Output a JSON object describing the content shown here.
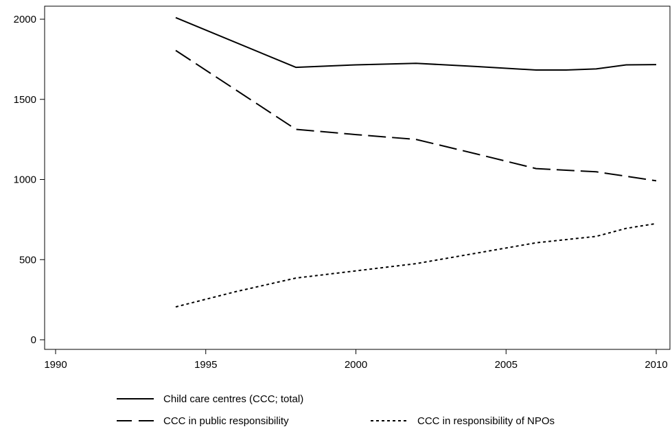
{
  "chart_data": {
    "type": "line",
    "title": "",
    "xlabel": "",
    "ylabel": "",
    "xlim": [
      1990,
      2010
    ],
    "ylim": [
      0,
      2000
    ],
    "x_ticks": [
      1990,
      1995,
      2000,
      2005,
      2010
    ],
    "y_ticks": [
      0,
      500,
      1000,
      1500,
      2000
    ],
    "grid": false,
    "legend_position": "bottom",
    "series": [
      {
        "name": "Child care centres (CCC; total)",
        "style": "solid",
        "color": "#000000",
        "x": [
          1994,
          1998,
          2000,
          2002,
          2004,
          2006,
          2007,
          2008,
          2009,
          2010
        ],
        "y": [
          2010,
          1700,
          1715,
          1725,
          1705,
          1683,
          1683,
          1690,
          1715,
          1717
        ]
      },
      {
        "name": "CCC in public responsibility",
        "style": "longdash",
        "color": "#000000",
        "x": [
          1994,
          1998,
          2000,
          2002,
          2004,
          2006,
          2008,
          2009,
          2010
        ],
        "y": [
          1805,
          1313,
          1280,
          1250,
          1160,
          1068,
          1048,
          1020,
          992
        ]
      },
      {
        "name": "CCC in responsibility of NPOs",
        "style": "shortdash",
        "color": "#000000",
        "x": [
          1994,
          1996,
          1998,
          2000,
          2002,
          2004,
          2006,
          2008,
          2009,
          2010
        ],
        "y": [
          205,
          300,
          385,
          430,
          475,
          540,
          605,
          645,
          695,
          725
        ]
      }
    ]
  }
}
